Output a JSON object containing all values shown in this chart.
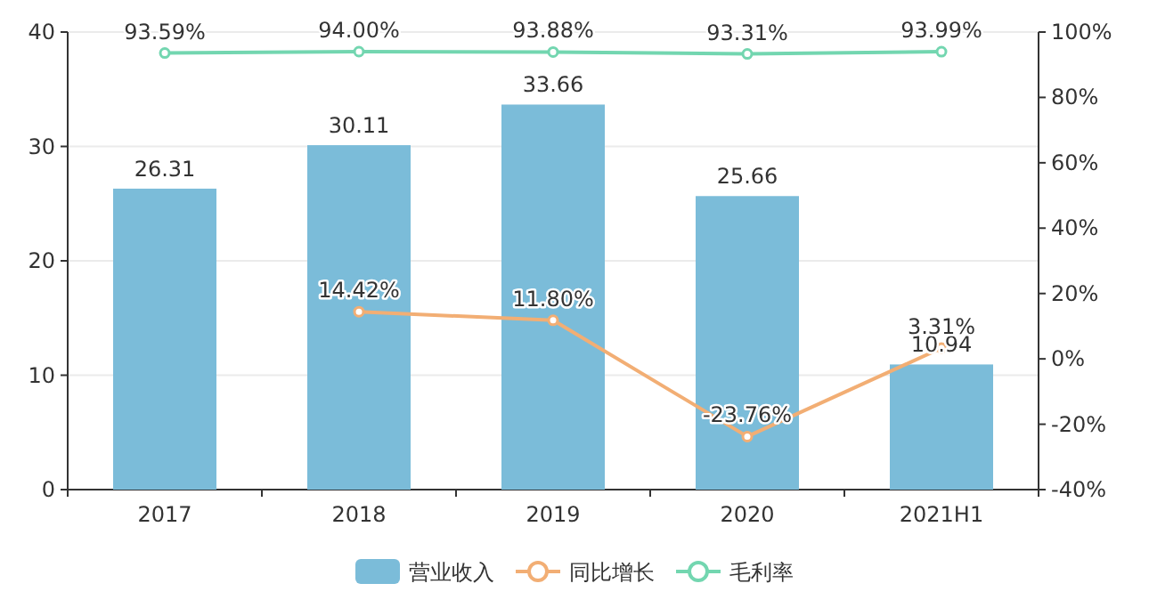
{
  "chart_data": {
    "type": "bar",
    "categories": [
      "2017",
      "2018",
      "2019",
      "2020",
      "2021H1"
    ],
    "series": [
      {
        "name": "营业收入",
        "color": "#7bbcd9",
        "values": [
          26.31,
          30.11,
          33.66,
          25.66,
          10.94
        ],
        "value_labels": [
          "26.31",
          "30.11",
          "33.66",
          "25.66",
          "10.94"
        ]
      },
      {
        "name": "同比增长",
        "type": "line",
        "axis": "y2",
        "color": "#f2ae74",
        "values": [
          null,
          14.42,
          11.8,
          -23.76,
          3.31
        ],
        "value_labels": [
          null,
          "14.42%",
          "11.80%",
          "-23.76%",
          "3.31%"
        ]
      },
      {
        "name": "毛利率",
        "type": "line",
        "axis": "y2",
        "color": "#73d6b0",
        "values": [
          93.59,
          94.0,
          93.88,
          93.31,
          93.99
        ],
        "value_labels": [
          "93.59%",
          "94.00%",
          "93.88%",
          "93.31%",
          "93.99%"
        ]
      }
    ],
    "ylim": [
      0,
      40
    ],
    "yticks": [
      0,
      10,
      20,
      30,
      40
    ],
    "y2lim": [
      -40,
      100
    ],
    "y2ticks": [
      {
        "value": -40,
        "label": "-40%"
      },
      {
        "value": -20,
        "label": "-20%"
      },
      {
        "value": 0,
        "label": "0%"
      },
      {
        "value": 20,
        "label": "20%"
      },
      {
        "value": 40,
        "label": "40%"
      },
      {
        "value": 60,
        "label": "60%"
      },
      {
        "value": 80,
        "label": "80%"
      },
      {
        "value": 100,
        "label": "100%"
      }
    ],
    "grid": "y",
    "legend": "bottom",
    "marker": "circle"
  }
}
